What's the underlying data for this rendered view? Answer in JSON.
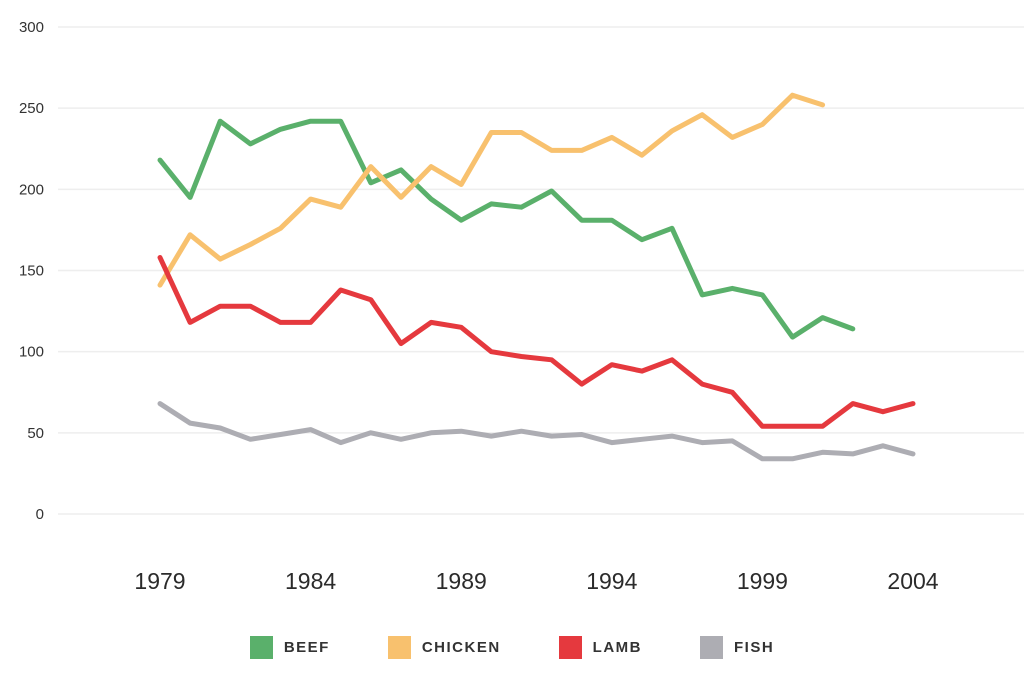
{
  "chart_data": {
    "type": "line",
    "x": [
      1979,
      1980,
      1981,
      1982,
      1983,
      1984,
      1985,
      1986,
      1987,
      1988,
      1989,
      1990,
      1991,
      1992,
      1993,
      1994,
      1995,
      1996,
      1997,
      1998,
      1999,
      2000,
      2001,
      2002,
      2003,
      2004
    ],
    "xticks": [
      "1979",
      "1984",
      "1989",
      "1994",
      "1999",
      "2004"
    ],
    "yticks": [
      "0",
      "50",
      "100",
      "150",
      "200",
      "250",
      "300"
    ],
    "ylim": [
      0,
      300
    ],
    "xlim": [
      1979,
      2004
    ],
    "grid": true,
    "legend_position": "bottom",
    "series": [
      {
        "name": "BEEF",
        "color": "#5ab06b",
        "values": [
          218,
          195,
          242,
          228,
          237,
          242,
          242,
          204,
          212,
          194,
          181,
          191,
          189,
          199,
          181,
          181,
          169,
          176,
          135,
          139,
          135,
          109,
          121,
          114,
          null,
          null
        ]
      },
      {
        "name": "CHICKEN",
        "color": "#f8c16e",
        "values": [
          141,
          172,
          157,
          166,
          176,
          194,
          189,
          214,
          195,
          214,
          203,
          235,
          235,
          224,
          224,
          232,
          221,
          236,
          246,
          232,
          240,
          258,
          252,
          null,
          null,
          null
        ]
      },
      {
        "name": "LAMB",
        "color": "#e5393e",
        "values": [
          158,
          118,
          128,
          128,
          118,
          118,
          138,
          132,
          105,
          118,
          115,
          100,
          97,
          95,
          80,
          92,
          88,
          95,
          80,
          75,
          54,
          54,
          54,
          68,
          63,
          68
        ]
      },
      {
        "name": "FISH",
        "color": "#adadb3",
        "values": [
          68,
          56,
          53,
          46,
          49,
          52,
          44,
          50,
          46,
          50,
          51,
          48,
          51,
          48,
          49,
          44,
          46,
          48,
          44,
          45,
          34,
          34,
          38,
          37,
          42,
          37
        ]
      }
    ]
  }
}
